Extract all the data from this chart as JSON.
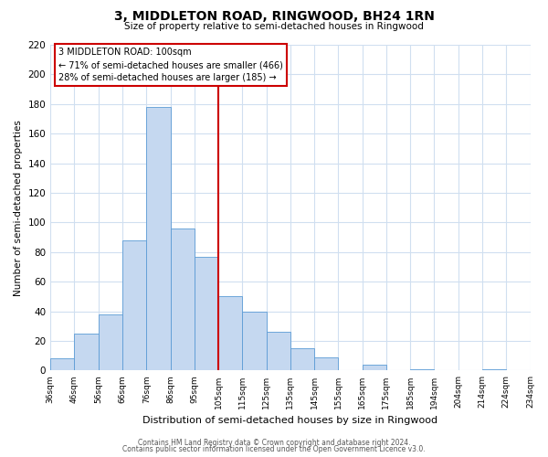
{
  "title": "3, MIDDLETON ROAD, RINGWOOD, BH24 1RN",
  "subtitle": "Size of property relative to semi-detached houses in Ringwood",
  "xlabel": "Distribution of semi-detached houses by size in Ringwood",
  "ylabel": "Number of semi-detached properties",
  "bin_labels": [
    "36sqm",
    "46sqm",
    "56sqm",
    "66sqm",
    "76sqm",
    "86sqm",
    "95sqm",
    "105sqm",
    "115sqm",
    "125sqm",
    "135sqm",
    "145sqm",
    "155sqm",
    "165sqm",
    "175sqm",
    "185sqm",
    "194sqm",
    "204sqm",
    "214sqm",
    "224sqm",
    "234sqm"
  ],
  "bar_values": [
    8,
    25,
    38,
    88,
    178,
    96,
    77,
    50,
    40,
    26,
    15,
    9,
    0,
    4,
    0,
    1,
    0,
    0,
    1,
    0
  ],
  "bar_color": "#c5d8f0",
  "bar_edge_color": "#5b9bd5",
  "marker_line_color": "#cc0000",
  "annotation_box_edge_color": "#cc0000",
  "marker_label": "3 MIDDLETON ROAD: 100sqm",
  "marker_smaller_pct": "71%",
  "marker_smaller_count": "466",
  "marker_larger_pct": "28%",
  "marker_larger_count": "185",
  "ylim": [
    0,
    220
  ],
  "yticks": [
    0,
    20,
    40,
    60,
    80,
    100,
    120,
    140,
    160,
    180,
    200,
    220
  ],
  "footer_line1": "Contains HM Land Registry data © Crown copyright and database right 2024.",
  "footer_line2": "Contains public sector information licensed under the Open Government Licence v3.0.",
  "bg_color": "#ffffff",
  "grid_color": "#d0dff0"
}
